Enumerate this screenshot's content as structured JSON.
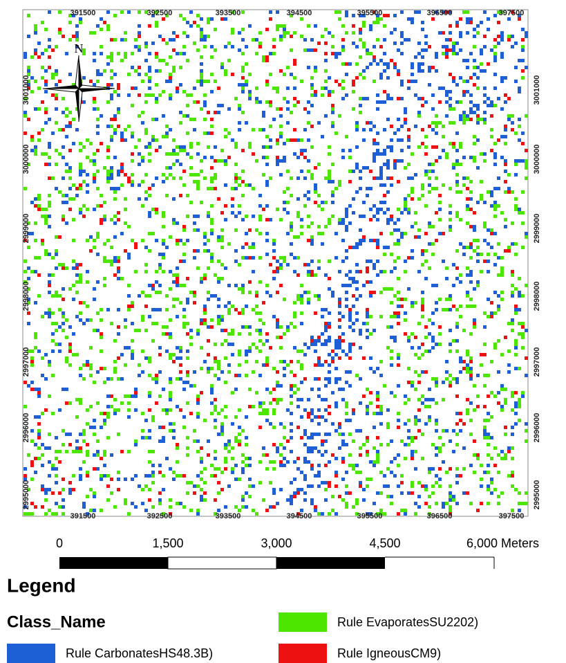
{
  "map": {
    "north_label": "N",
    "x_labels_top": [
      "391500",
      "392500",
      "393500",
      "394500",
      "395500",
      "396500",
      "397500"
    ],
    "x_labels_bottom": [
      "391500",
      "392500",
      "393500",
      "394500",
      "395500",
      "396500",
      "397500"
    ],
    "y_labels_left": [
      "3001000",
      "3000000",
      "2999000",
      "2998000",
      "2997000",
      "2996000",
      "2995000"
    ],
    "y_labels_right": [
      "3001000",
      "3000000",
      "2999000",
      "2998000",
      "2997000",
      "2996000",
      "2995000"
    ]
  },
  "scale_bar": {
    "labels": [
      "0",
      "1,500",
      "3,000",
      "4,500",
      "6,000 Meters"
    ]
  },
  "legend": {
    "title": "Legend",
    "field": "Class_Name",
    "items": [
      {
        "label": "Rule EvaporatesSU2202)",
        "color": "#4ce600"
      },
      {
        "label": "Rule CarbonatesHS48.3B)",
        "color": "#1f5fd6"
      },
      {
        "label": "Rule IgneousCM9)",
        "color": "#ee1111"
      }
    ]
  }
}
